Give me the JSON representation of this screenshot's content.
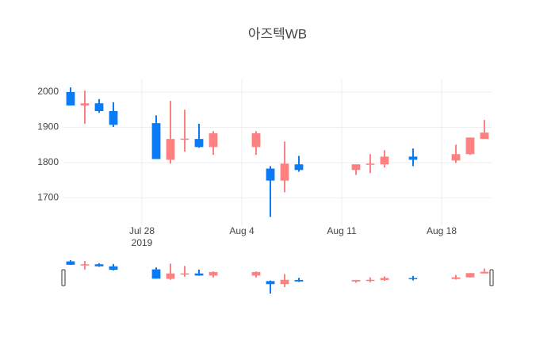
{
  "chart_data": {
    "type": "candlestick",
    "title": "아즈텍WB",
    "x": [
      "2019-07-23",
      "2019-07-24",
      "2019-07-25",
      "2019-07-26",
      "2019-07-29",
      "2019-07-30",
      "2019-07-31",
      "2019-08-01",
      "2019-08-02",
      "2019-08-05",
      "2019-08-06",
      "2019-08-07",
      "2019-08-08",
      "2019-08-12",
      "2019-08-13",
      "2019-08-14",
      "2019-08-16",
      "2019-08-19",
      "2019-08-20",
      "2019-08-21"
    ],
    "open": [
      2000,
      1962,
      1968,
      1946,
      1912,
      1808,
      1865,
      1867,
      1844,
      1844,
      1783,
      1749,
      1795,
      1779,
      1795,
      1795,
      1817,
      1806,
      1824,
      1867
    ],
    "high": [
      2013,
      2004,
      1980,
      1971,
      1934,
      1975,
      1950,
      1910,
      1889,
      1889,
      1790,
      1860,
      1819,
      1795,
      1824,
      1835,
      1840,
      1851,
      1871,
      1921
    ],
    "low": [
      1962,
      1910,
      1941,
      1901,
      1810,
      1797,
      1831,
      1842,
      1822,
      1822,
      1646,
      1716,
      1774,
      1765,
      1770,
      1786,
      1790,
      1799,
      1822,
      1867
    ],
    "close": [
      1962,
      1968,
      1946,
      1907,
      1810,
      1867,
      1868,
      1844,
      1883,
      1883,
      1749,
      1797,
      1779,
      1795,
      1797,
      1817,
      1808,
      1824,
      1871,
      1885
    ],
    "increasing_color": "#ff8080",
    "decreasing_color": "#0a7bf5",
    "xlim": [
      "2019-07-22T12:00:00",
      "2019-08-21T12:00:00"
    ],
    "xticks": [
      {
        "value": "2019-07-28",
        "label": "Jul 28"
      },
      {
        "value": "2019-08-04",
        "label": "Aug 4"
      },
      {
        "value": "2019-08-11",
        "label": "Aug 11"
      },
      {
        "value": "2019-08-18",
        "label": "Aug 18"
      }
    ],
    "x_year_label": "2019",
    "ylim": [
      1620,
      2036
    ],
    "yticks": [
      1700,
      1800,
      1900,
      2000
    ],
    "grid": true,
    "rangeslider": true
  }
}
